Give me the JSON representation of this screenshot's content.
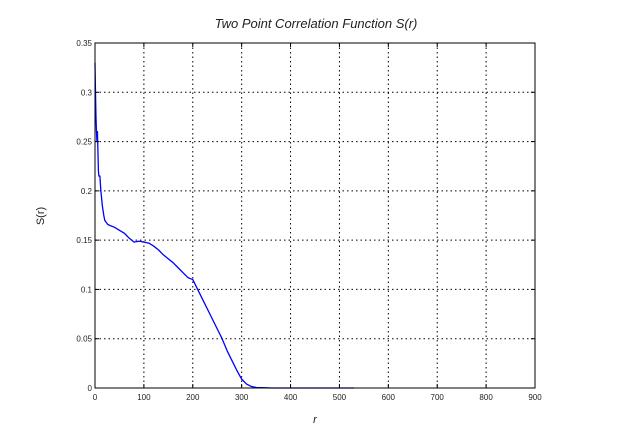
{
  "chart_data": {
    "type": "line",
    "title": "Two Point Correlation Function S(r)",
    "xlabel": "r",
    "ylabel": "S(r)",
    "xlim": [
      0,
      900
    ],
    "ylim": [
      0,
      0.35
    ],
    "xticks": [
      0,
      100,
      200,
      300,
      400,
      500,
      600,
      700,
      800,
      900
    ],
    "yticks": [
      0,
      0.05,
      0.1,
      0.15,
      0.2,
      0.25,
      0.3,
      0.35
    ],
    "xtick_labels": [
      "0",
      "100",
      "200",
      "300",
      "400",
      "500",
      "600",
      "700",
      "800",
      "900"
    ],
    "ytick_labels": [
      "0",
      "0.05",
      "0.1",
      "0.15",
      "0.2",
      "0.25",
      "0.3",
      "0.35"
    ],
    "grid": true,
    "line_color": "#0000ff",
    "series": [
      {
        "x": [
          0,
          1,
          2,
          3,
          4,
          5,
          6,
          7,
          8,
          10,
          12,
          15,
          18,
          20,
          23,
          26,
          30,
          40,
          50,
          60,
          70,
          80,
          90,
          100,
          110,
          120,
          130,
          140,
          150,
          160,
          170,
          180,
          190,
          200,
          210,
          220,
          230,
          240,
          250,
          260,
          270,
          280,
          290,
          300,
          310,
          320,
          330,
          340,
          350,
          360,
          370,
          380,
          400,
          450,
          500,
          530
        ],
        "y": [
          0.33,
          0.3,
          0.275,
          0.26,
          0.25,
          0.26,
          0.24,
          0.22,
          0.215,
          0.215,
          0.2,
          0.185,
          0.175,
          0.17,
          0.168,
          0.166,
          0.165,
          0.163,
          0.16,
          0.157,
          0.152,
          0.148,
          0.149,
          0.148,
          0.147,
          0.144,
          0.14,
          0.135,
          0.131,
          0.127,
          0.122,
          0.117,
          0.112,
          0.11,
          0.1,
          0.09,
          0.08,
          0.07,
          0.06,
          0.05,
          0.038,
          0.028,
          0.018,
          0.009,
          0.004,
          0.0015,
          0.0005,
          0.0003,
          0.0002,
          0,
          0,
          0,
          0,
          0,
          0,
          0
        ]
      }
    ]
  }
}
